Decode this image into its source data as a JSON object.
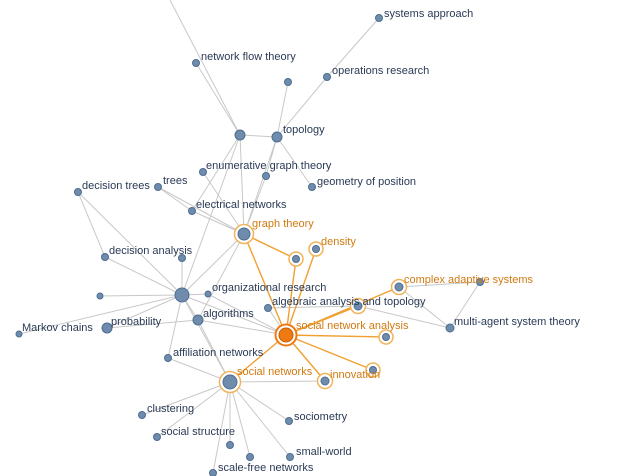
{
  "colors": {
    "node_fill": "#6f8cac",
    "node_stroke": "#4d6d91",
    "edge": "#c8c8c8",
    "highlight": "#f0a030",
    "highlight_center": "#f07a12",
    "highlight_ring": "#f2b35a",
    "highlight_text": "#d07a12",
    "label": "#2a3a55"
  },
  "nodes": [
    {
      "id": "systems_approach",
      "label": "systems approach",
      "highlight": false
    },
    {
      "id": "network_flow_theory",
      "label": "network flow theory",
      "highlight": false
    },
    {
      "id": "operations_research",
      "label": "operations research",
      "highlight": false
    },
    {
      "id": "topology",
      "label": "topology",
      "highlight": false
    },
    {
      "id": "enumerative_graph_theory",
      "label": "enumerative graph theory",
      "highlight": false
    },
    {
      "id": "geometry_of_position",
      "label": "geometry of position",
      "highlight": false
    },
    {
      "id": "decision_trees",
      "label": "decision trees",
      "highlight": false
    },
    {
      "id": "trees",
      "label": "trees",
      "highlight": false
    },
    {
      "id": "electrical_networks",
      "label": "electrical networks",
      "highlight": false
    },
    {
      "id": "graph_theory",
      "label": "graph theory",
      "highlight": true
    },
    {
      "id": "density",
      "label": "density",
      "highlight": true
    },
    {
      "id": "decision_analysis",
      "label": "decision analysis",
      "highlight": false
    },
    {
      "id": "complex_adaptive_systems",
      "label": "complex adaptive systems",
      "highlight": true
    },
    {
      "id": "organizational_research",
      "label": "organizational research",
      "highlight": false
    },
    {
      "id": "algebraic_analysis",
      "label": "algebraic analysis and topology",
      "highlight": false
    },
    {
      "id": "algorithms",
      "label": "algorithms",
      "highlight": false
    },
    {
      "id": "multi_agent",
      "label": "multi-agent system theory",
      "highlight": false
    },
    {
      "id": "markov_chains",
      "label": "Markov chains",
      "highlight": false
    },
    {
      "id": "probability",
      "label": "probability",
      "highlight": false
    },
    {
      "id": "social_network_analysis",
      "label": "social network analysis",
      "highlight": true,
      "center": true
    },
    {
      "id": "affiliation_networks",
      "label": "affiliation networks",
      "highlight": false
    },
    {
      "id": "social_networks",
      "label": "social networks",
      "highlight": true
    },
    {
      "id": "innovation",
      "label": "innovation",
      "highlight": true
    },
    {
      "id": "clustering",
      "label": "clustering",
      "highlight": false
    },
    {
      "id": "sociometry",
      "label": "sociometry",
      "highlight": false
    },
    {
      "id": "social_structure",
      "label": "social structure",
      "highlight": false
    },
    {
      "id": "small_world",
      "label": "small-world",
      "highlight": false
    },
    {
      "id": "scale_free_networks",
      "label": "scale-free networks",
      "highlight": false
    }
  ]
}
